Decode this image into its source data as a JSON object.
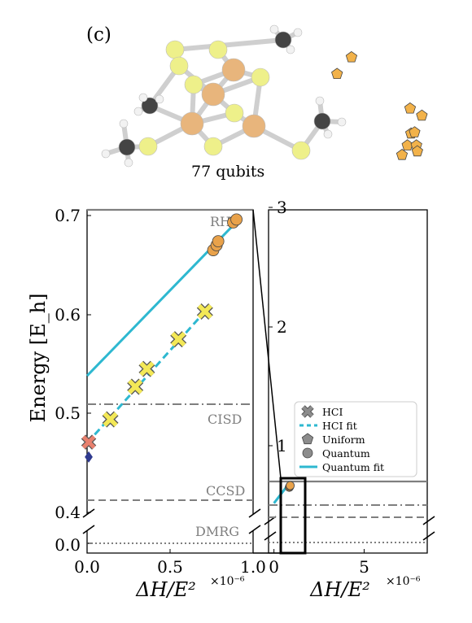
{
  "panel_label": "(c)",
  "molecule": {
    "caption": "77 qubits",
    "colors": {
      "iron": "#e8b57c",
      "sulfur": "#eef08a",
      "carbon": "#444444",
      "hydrogen": "#f2f2f2",
      "bond": "#cfcfcf"
    }
  },
  "colors": {
    "frame": "#000000",
    "reference_line": "#7f7f7f",
    "reference_text": "#7f7f7f",
    "hci_fit": "#2eb8d0",
    "quantum_fit": "#2eb8d0",
    "hci_marker": "#f3e857",
    "uniform_marker": "#f2b24a",
    "quantum_marker": "#e9a24a",
    "legend_marker": "#8c8c8c",
    "extrap_red": "#e8806e",
    "extrap_navy": "#2f3a8f"
  },
  "chart_data": {
    "type": "scatter",
    "ylabel": "Energy [E_h]",
    "reference_lines": [
      {
        "name": "RHF",
        "value": 0.702,
        "style": "solid"
      },
      {
        "name": "CISD",
        "value": 0.509,
        "style": "dashdot"
      },
      {
        "name": "CCSD",
        "value": 0.415,
        "style": "dashed"
      },
      {
        "name": "DMRG",
        "value": 0.0,
        "style": "dotted"
      }
    ],
    "legend": {
      "position": "lower-right",
      "entries": [
        {
          "label": "HCI",
          "marker": "x"
        },
        {
          "label": "HCI fit",
          "marker": "dashed-line"
        },
        {
          "label": "Uniform",
          "marker": "pentagon"
        },
        {
          "label": "Quantum",
          "marker": "circle"
        },
        {
          "label": "Quantum fit",
          "marker": "line"
        }
      ]
    },
    "left": {
      "xlabel": "ΔH/E²",
      "x_multiplier": "×10⁻⁶",
      "xlim": [
        0.0,
        1.0
      ],
      "x_ticks": [
        "0.0",
        "0.5",
        "1.0"
      ],
      "y_ticks": [
        "0.4",
        "0.5",
        "0.6",
        "0.7"
      ],
      "y_ticks_low": [
        "0.0"
      ],
      "ylim": [
        0.41,
        0.703
      ],
      "ylim_low": [
        -0.006,
        0.01
      ],
      "series": [
        {
          "name": "HCI",
          "marker": "x",
          "x": [
            0.14,
            0.29,
            0.36,
            0.55,
            0.71
          ],
          "y": [
            0.494,
            0.527,
            0.545,
            0.575,
            0.603
          ]
        },
        {
          "name": "HCI fit",
          "style": "dashed",
          "x": [
            0.0,
            0.71
          ],
          "y": [
            0.47,
            0.603
          ]
        },
        {
          "name": "Quantum",
          "marker": "circle",
          "x": [
            0.76,
            0.78,
            0.79,
            0.88,
            0.9
          ],
          "y": [
            0.665,
            0.67,
            0.674,
            0.693,
            0.696
          ]
        },
        {
          "name": "Quantum fit",
          "style": "solid",
          "x": [
            0.0,
            0.92
          ],
          "y": [
            0.538,
            0.697
          ]
        },
        {
          "name": "HCI extrapolated",
          "marker": "x",
          "x": [
            0.01
          ],
          "y": [
            0.471
          ]
        },
        {
          "name": "extrapolated (navy)",
          "marker": "diamond",
          "x": [
            0.01
          ],
          "y": [
            0.456
          ]
        }
      ]
    },
    "right": {
      "xlabel": "ΔH/E²",
      "x_multiplier": "×10⁻⁶",
      "xlim": [
        -0.3,
        8.5
      ],
      "x_ticks": [
        "0",
        "5"
      ],
      "y_ticks": [
        "1",
        "2",
        "3"
      ],
      "ylim": [
        0.705,
        3.0
      ],
      "series": [
        {
          "name": "Uniform",
          "marker": "pentagon",
          "x": [
            3.5,
            4.3,
            7.1,
            7.4,
            7.6,
            7.8,
            7.9,
            7.95,
            8.2,
            7.55
          ],
          "y": [
            1.88,
            1.74,
            2.56,
            2.48,
            2.38,
            2.37,
            2.48,
            2.53,
            2.23,
            2.17
          ]
        },
        {
          "name": "Quantum",
          "marker": "circle",
          "x": [
            0.85,
            0.88,
            0.9
          ],
          "y": [
            0.655,
            0.662,
            0.668
          ]
        },
        {
          "name": "Quantum fit",
          "style": "solid",
          "x": [
            0.0,
            0.92
          ],
          "y": [
            0.538,
            0.697
          ]
        }
      ]
    }
  }
}
